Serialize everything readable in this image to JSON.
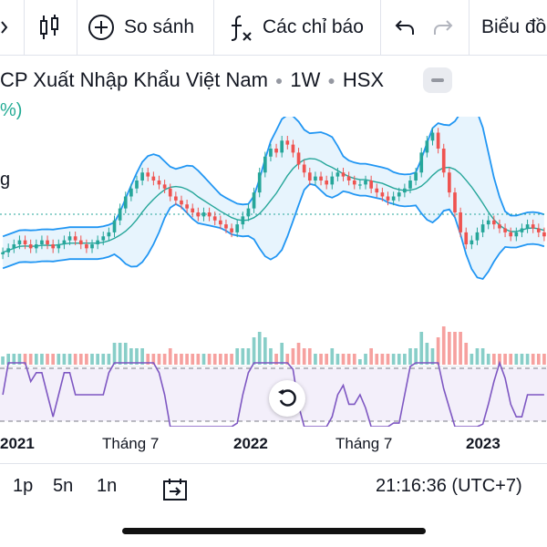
{
  "toolbar": {
    "compare_label": "So sánh",
    "indicators_label": "Các chỉ báo",
    "chart_type_label": "Biểu đồ",
    "icons": [
      "candles-icon",
      "plus-circle-icon",
      "fx-icon",
      "undo-icon",
      "redo-icon"
    ]
  },
  "symbol": {
    "name": "CP Xuất Nhập Khẩu Việt Nam",
    "interval": "1W",
    "exchange": "HSX",
    "change_fragment": "%)",
    "legend_fragment": "g"
  },
  "xaxis": {
    "labels": [
      "2021",
      "Tháng 7",
      "2022",
      "Tháng 7",
      "2023"
    ],
    "bold": [
      true,
      false,
      true,
      false,
      true
    ]
  },
  "timeframes": [
    "1p",
    "5n",
    "1n"
  ],
  "clock": "21:16:36 (UTC+7)",
  "colors": {
    "up": "#26a69a",
    "down": "#ef5350",
    "bb_band": "#2196f3",
    "bb_basis": "#26a69a",
    "bb_fill": "#e3f2fd",
    "rsi": "#7e57c2"
  },
  "chart_data": {
    "type": "line",
    "price_series": [
      {
        "name": "",
        "close": [
          30,
          31,
          32,
          33,
          32,
          31,
          32,
          33,
          32,
          31,
          32,
          33,
          34,
          33,
          32,
          31,
          32,
          33,
          34,
          35,
          38,
          41,
          44,
          46,
          48,
          50,
          49,
          48,
          47,
          46,
          44,
          43,
          42,
          41,
          40,
          39,
          40,
          39,
          38,
          37,
          36,
          35,
          37,
          39,
          41,
          45,
          50,
          54,
          56,
          55,
          58,
          57,
          55,
          52,
          50,
          48,
          49,
          48,
          47,
          49,
          50,
          49,
          48,
          47,
          47,
          48,
          46,
          45,
          44,
          43,
          44,
          45,
          46,
          48,
          50,
          55,
          58,
          60,
          56,
          50,
          45,
          40,
          35,
          32,
          33,
          35,
          37,
          38,
          37,
          36,
          35,
          34,
          35,
          36,
          37,
          36,
          35,
          34
        ]
      }
    ],
    "rsi": {
      "upper": 70,
      "lower": 30
    },
    "x_labels": [
      "2021",
      "Tháng 7",
      "2022",
      "Tháng 7",
      "2023"
    ]
  }
}
